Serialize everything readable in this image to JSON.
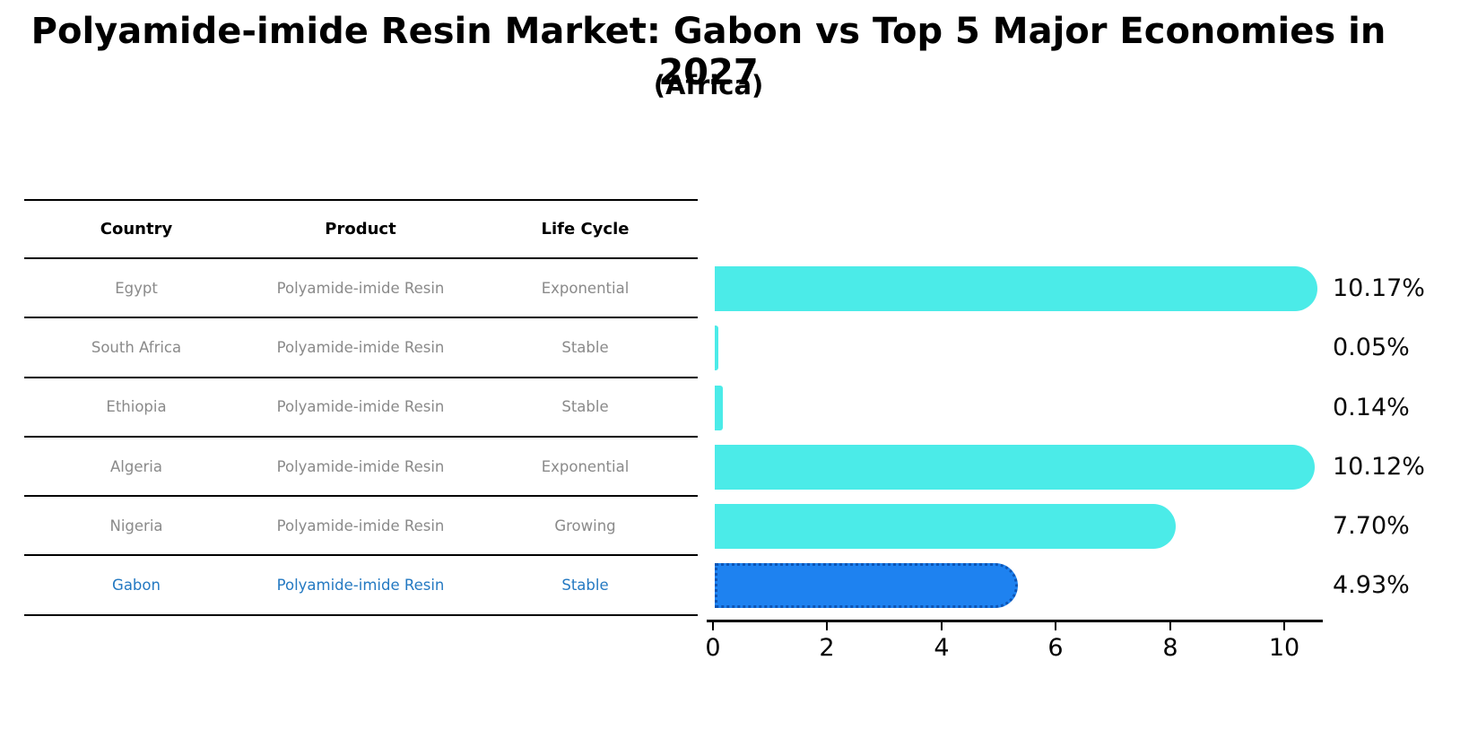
{
  "title": "Polyamide-imide Resin Market: Gabon vs Top 5 Major Economies in 2027",
  "subtitle": "(Africa)",
  "table": {
    "headers": [
      "Country",
      "Product",
      "Life Cycle"
    ],
    "rows": [
      {
        "country": "Egypt",
        "product": "Polyamide-imide Resin",
        "life_cycle": "Exponential"
      },
      {
        "country": "South Africa",
        "product": "Polyamide-imide Resin",
        "life_cycle": "Stable"
      },
      {
        "country": "Ethiopia",
        "product": "Polyamide-imide Resin",
        "life_cycle": "Stable"
      },
      {
        "country": "Algeria",
        "product": "Polyamide-imide Resin",
        "life_cycle": "Exponential"
      },
      {
        "country": "Nigeria",
        "product": "Polyamide-imide Resin",
        "life_cycle": "Growing"
      },
      {
        "country": "Gabon",
        "product": "Polyamide-imide Resin",
        "life_cycle": "Stable"
      }
    ],
    "highlighted_row": "Gabon"
  },
  "chart_data": {
    "type": "bar",
    "orientation": "horizontal",
    "categories": [
      "Egypt",
      "South Africa",
      "Ethiopia",
      "Algeria",
      "Nigeria",
      "Gabon"
    ],
    "values": [
      10.17,
      0.05,
      0.14,
      10.12,
      7.7,
      4.93
    ],
    "value_labels": [
      "10.17%",
      "0.05%",
      "0.14%",
      "10.12%",
      "7.70%",
      "4.93%"
    ],
    "x_ticks": [
      0,
      2,
      4,
      6,
      8,
      10
    ],
    "x_tick_labels": [
      "0",
      "2",
      "4",
      "6",
      "8",
      "10"
    ],
    "xlim": [
      0,
      10.7
    ],
    "title": "Polyamide-imide Resin Market: Gabon vs Top 5 Major Economies in 2027 (Africa)",
    "xlabel": "",
    "ylabel": "",
    "grid": false,
    "legend": false,
    "bar_color": "#4BEBE8",
    "highlight_index": 5,
    "highlight_bar_color": "#1E82F0",
    "highlight_border_color": "#0D55B5"
  },
  "colors": {
    "background": "#FFFFFF",
    "title_text": "#000000",
    "table_text": "#8A8A8A",
    "table_header_text": "#000000",
    "highlight_text": "#2479C2",
    "table_line": "#000000",
    "axis": "#000000",
    "value_label_text": "#0A0A0A"
  }
}
